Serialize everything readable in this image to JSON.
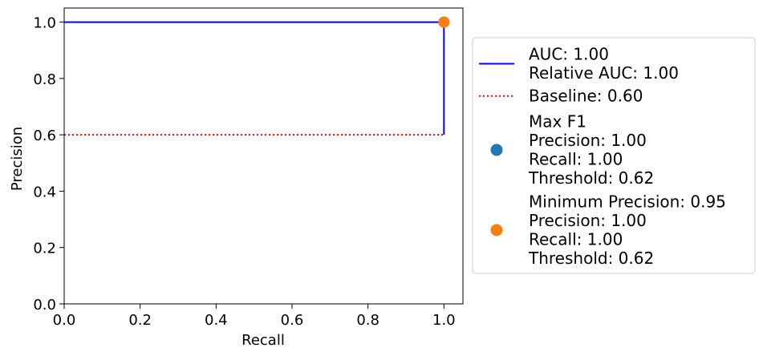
{
  "chart_data": {
    "type": "line",
    "xlabel": "Recall",
    "ylabel": "Precision",
    "xlim": [
      0.0,
      1.05
    ],
    "ylim": [
      0.0,
      1.05
    ],
    "xticks": [
      "0.0",
      "0.2",
      "0.4",
      "0.6",
      "0.8",
      "1.0"
    ],
    "yticks": [
      "0.0",
      "0.2",
      "0.4",
      "0.6",
      "0.8",
      "1.0"
    ],
    "grid": false,
    "legend_placement": "outside-right",
    "series": [
      {
        "kind": "line",
        "color": "#0000ff",
        "x": [
          0.0,
          1.0,
          1.0
        ],
        "y": [
          1.0,
          1.0,
          0.6
        ]
      },
      {
        "kind": "line",
        "style": "dotted",
        "color": "#ff0000",
        "x": [
          0.0,
          1.0
        ],
        "y": [
          0.6,
          0.6
        ]
      },
      {
        "kind": "point",
        "color": "#1f77b4",
        "x": [
          1.0
        ],
        "y": [
          1.0
        ]
      },
      {
        "kind": "point",
        "color": "#ff7f0e",
        "x": [
          1.0
        ],
        "y": [
          1.0
        ]
      }
    ],
    "legend": [
      {
        "swatch": "line",
        "color": "#0000ff",
        "lines": [
          "AUC: 1.00",
          "Relative AUC: 1.00"
        ]
      },
      {
        "swatch": "dotted",
        "color": "#ff0000",
        "lines": [
          "Baseline: 0.60"
        ]
      },
      {
        "swatch": "dot",
        "color": "#1f77b4",
        "lines": [
          "Max F1",
          "Precision: 1.00",
          "Recall: 1.00",
          "Threshold: 0.62"
        ]
      },
      {
        "swatch": "dot",
        "color": "#ff7f0e",
        "lines": [
          "Minimum Precision: 0.95",
          "Precision: 1.00",
          "Recall: 1.00",
          "Threshold: 0.62"
        ]
      }
    ]
  }
}
